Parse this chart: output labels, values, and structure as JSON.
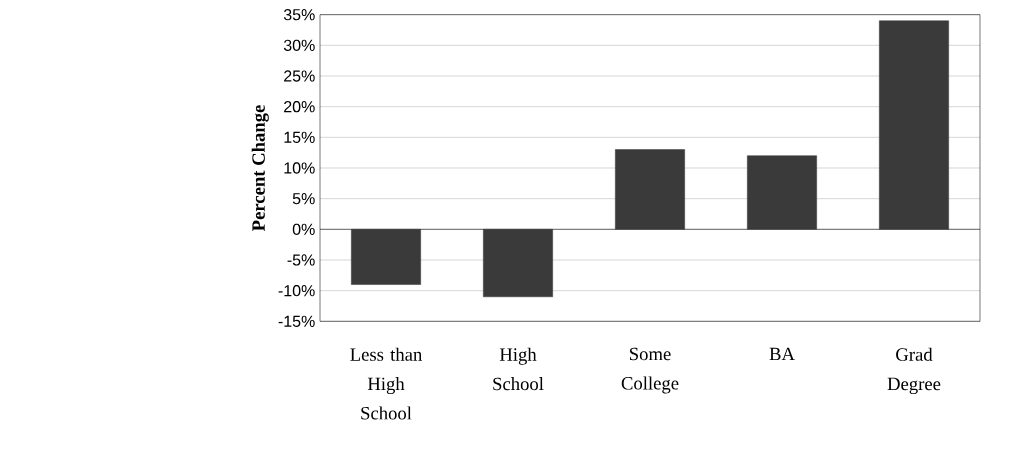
{
  "chart_data": {
    "type": "bar",
    "ylabel": "Percent Change",
    "categories": [
      "Less than High School",
      "High School",
      "Some College",
      "BA",
      "Grad Degree"
    ],
    "values": [
      -9,
      -11,
      13,
      12,
      34
    ],
    "color": "#3a3a3a",
    "ylim": [
      -15,
      35
    ],
    "yticks": [
      {
        "value": -15,
        "label": "-15%"
      },
      {
        "value": -10,
        "label": "-10%"
      },
      {
        "value": -5,
        "label": "-5%"
      },
      {
        "value": 0,
        "label": "0%"
      },
      {
        "value": 5,
        "label": "5%"
      },
      {
        "value": 10,
        "label": "10%"
      },
      {
        "value": 15,
        "label": "15%"
      },
      {
        "value": 20,
        "label": "20%"
      },
      {
        "value": 25,
        "label": "25%"
      },
      {
        "value": 30,
        "label": "30%"
      },
      {
        "value": 35,
        "label": "35%"
      }
    ],
    "grid": "y"
  }
}
